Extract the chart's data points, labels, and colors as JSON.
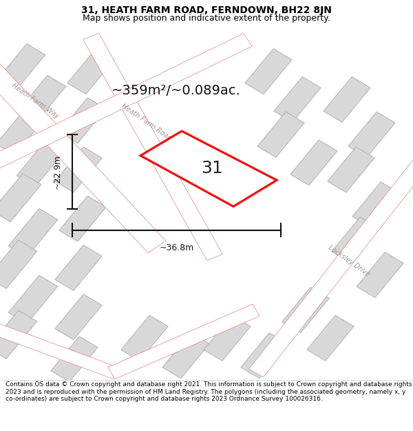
{
  "title": "31, HEATH FARM ROAD, FERNDOWN, BH22 8JN",
  "subtitle": "Map shows position and indicative extent of the property.",
  "footer": "Contains OS data © Crown copyright and database right 2021. This information is subject to Crown copyright and database rights 2023 and is reproduced with the permission of HM Land Registry. The polygons (including the associated geometry, namely x, y co-ordinates) are subject to Crown copyright and database rights 2023 Ordnance Survey 100026316.",
  "area_label": "~359m²/~0.089ac.",
  "width_label": "~36.8m",
  "height_label": "~22.9m",
  "plot_number": "31",
  "bg_color": "#efefef",
  "plot_fill": "#ffffff",
  "plot_edge": "#ff0000",
  "building_fill": "#d8d8d8",
  "building_edge": "#aaaaaa",
  "road_fill": "#ffffff",
  "road_edge": "#e08080",
  "road_label_color": "#b09090",
  "dim_color": "#111111",
  "figsize": [
    6.0,
    6.25
  ],
  "dpi": 100,
  "title_fontsize": 10,
  "subtitle_fontsize": 9,
  "footer_fontsize": 6.5,
  "area_fontsize": 14,
  "dim_fontsize": 9,
  "plot_num_fontsize": 18
}
